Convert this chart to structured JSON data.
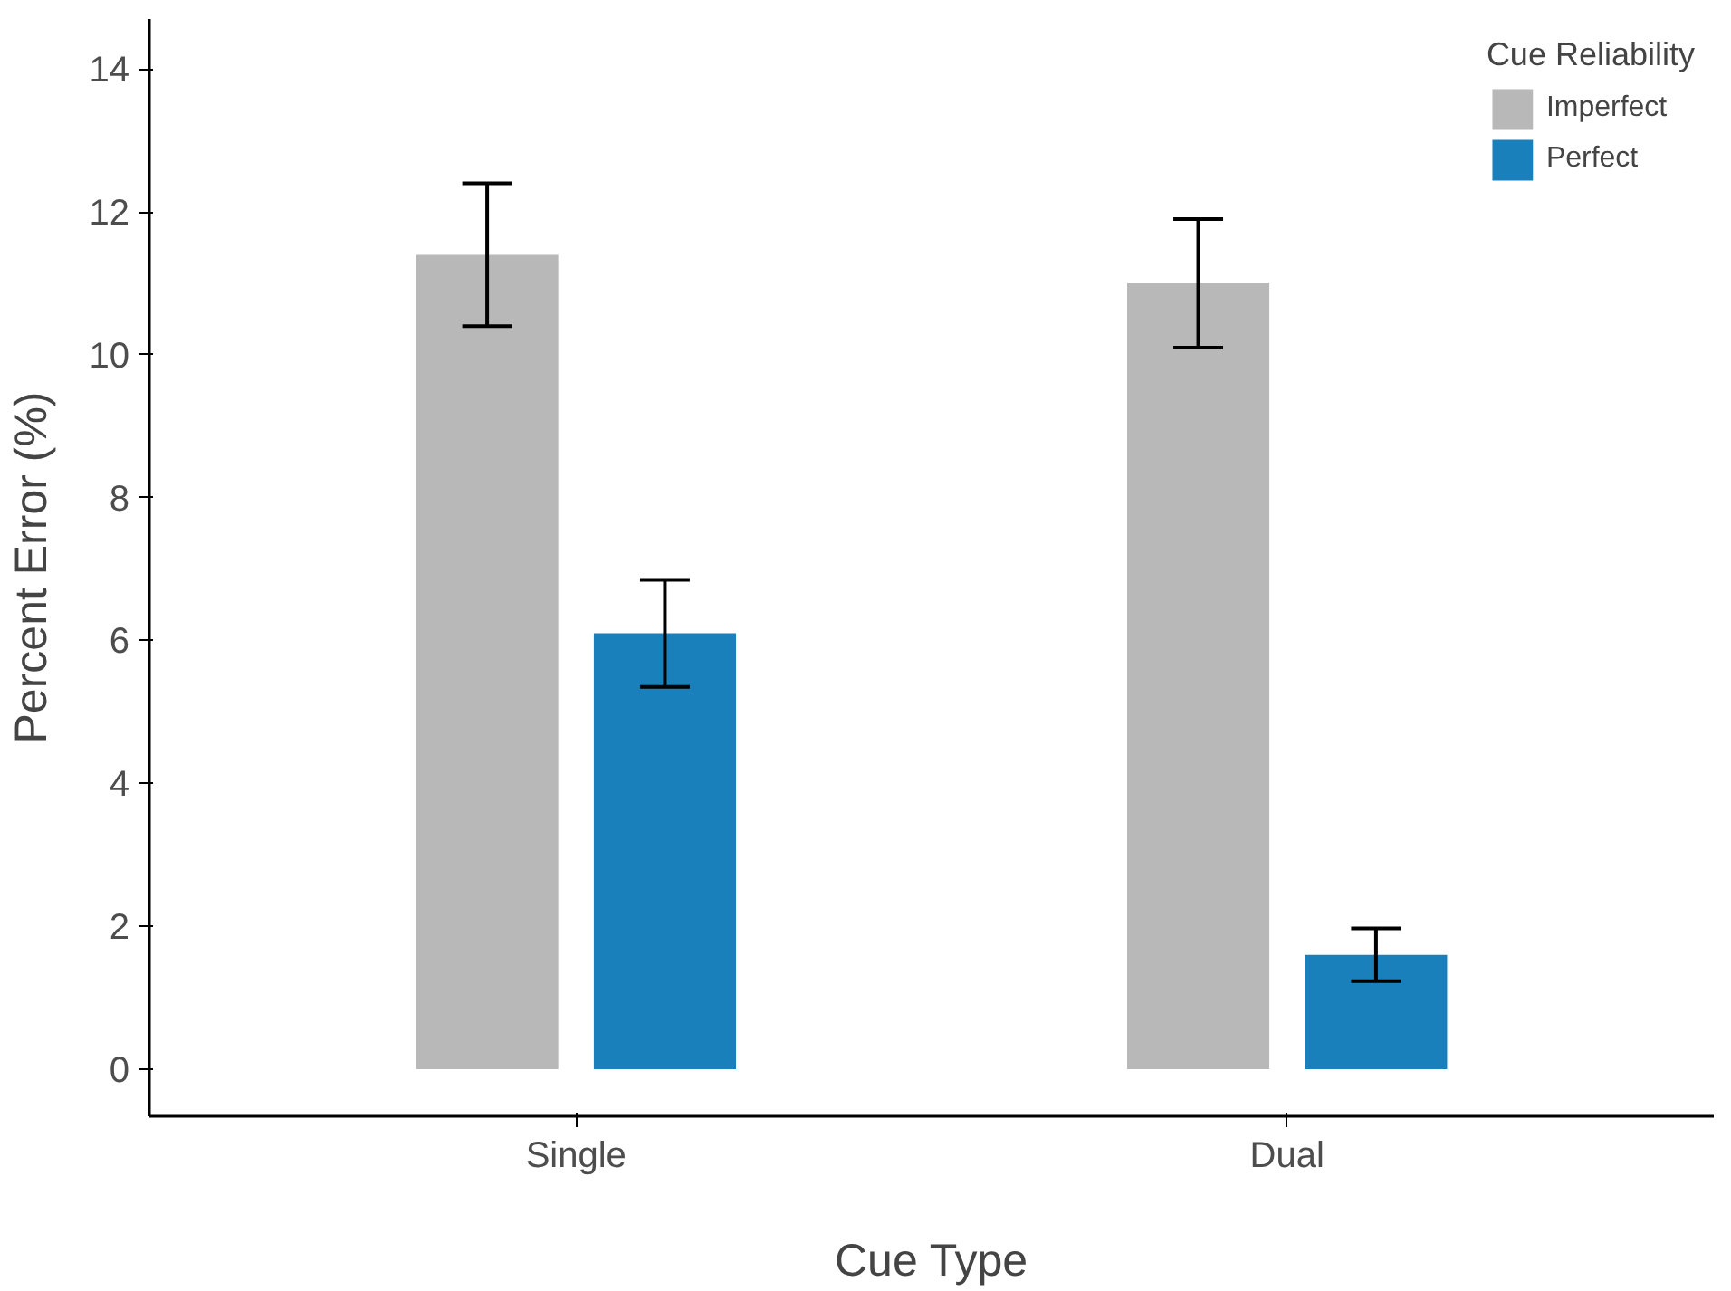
{
  "chart_data": {
    "type": "bar",
    "xlabel": "Cue Type",
    "ylabel": "Percent Error (%)",
    "legend_title": "Cue Reliability",
    "categories": [
      "Single",
      "Dual"
    ],
    "series": [
      {
        "name": "Imperfect",
        "color": "#b8b8b8",
        "values": [
          11.4,
          11.0
        ],
        "errors": [
          1.0,
          0.9
        ]
      },
      {
        "name": "Perfect",
        "color": "#1a80bb",
        "values": [
          6.1,
          1.6
        ],
        "errors": [
          0.75,
          0.37
        ]
      }
    ],
    "ylim": [
      -0.66,
      14.7
    ],
    "yticks": [
      0,
      2,
      4,
      6,
      8,
      10,
      12,
      14
    ],
    "grid": false,
    "legend": "top right"
  }
}
